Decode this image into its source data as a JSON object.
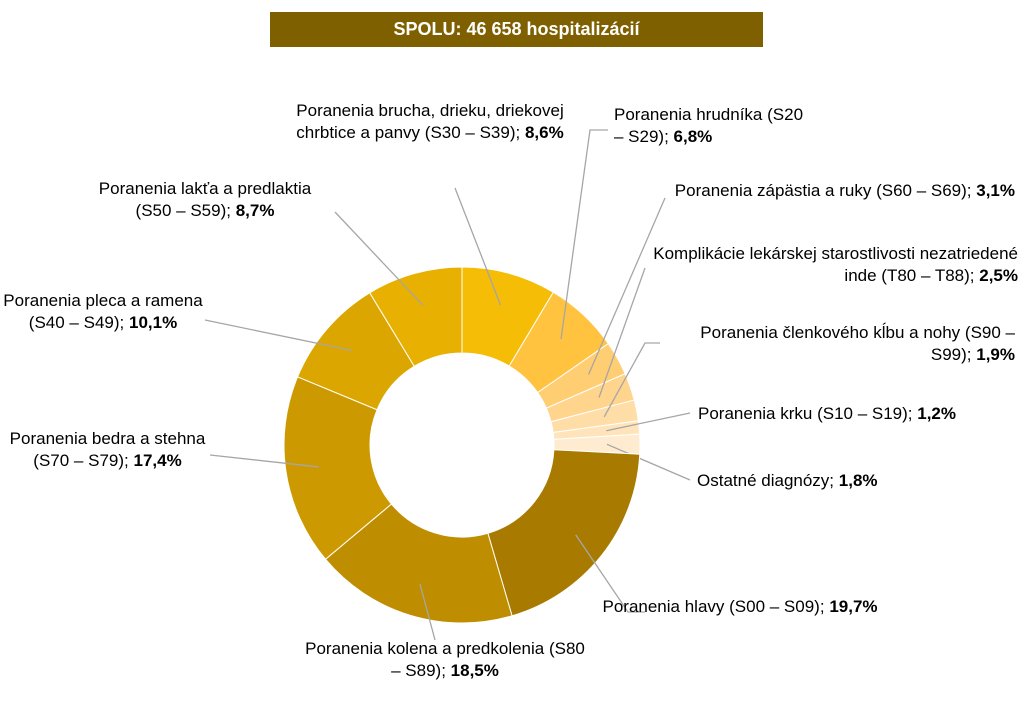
{
  "chart_data": {
    "type": "pie",
    "donut": true,
    "title": "SPOLU: 46 658 hospitalizácií",
    "categories": [
      "Poranenia brucha, drieku, driekovej chrbtice a panvy (S30 – S39);",
      "Poranenia hrudníka (S20 – S29);",
      "Poranenia zápästia a ruky (S60 – S69);",
      "Komplikácie lekárskej starostlivosti nezatriedené inde (T80 – T88);",
      "Poranenia členkového kĺbu a nohy (S90 – S99);",
      "Poranenia krku (S10 – S19);",
      "Ostatné diagnózy;",
      "Poranenia hlavy (S00 – S09);",
      "Poranenia kolena a predkolenia (S80 – S89);",
      "Poranenia bedra a stehna (S70 – S79);",
      "Poranenia pleca a ramena (S40 – S49);",
      "Poranenia lakťa a predlaktia (S50 – S59);"
    ],
    "values": [
      8.6,
      6.8,
      3.1,
      2.5,
      1.9,
      1.2,
      1.8,
      19.7,
      18.5,
      17.4,
      10.1,
      8.7
    ],
    "value_labels": [
      "8,6%",
      "6,8%",
      "3,1%",
      "2,5%",
      "1,9%",
      "1,2%",
      "1,8%",
      "19,7%",
      "18,5%",
      "17,4%",
      "10,1%",
      "8,7%"
    ],
    "colors": [
      "#f5bd05",
      "#ffc33f",
      "#ffcd72",
      "#ffd58e",
      "#ffdda7",
      "#ffe4bb",
      "#ffebcf",
      "#a87b00",
      "#bf8d00",
      "#cc9a00",
      "#dba600",
      "#e8b000"
    ]
  }
}
